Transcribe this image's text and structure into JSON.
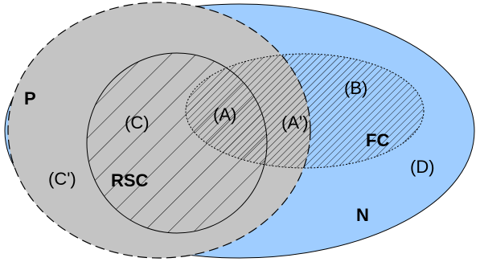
{
  "diagram": {
    "sets": {
      "n": {
        "label": "N",
        "color": "#9fcdff"
      },
      "p": {
        "label": "P",
        "color": "#c4c4c4"
      },
      "rsc": {
        "label": "RSC"
      },
      "fc": {
        "label": "FC"
      }
    },
    "regions": {
      "a": "(A)",
      "a_prime": "(A')",
      "b": "(B)",
      "c": "(C)",
      "c_prime": "(C')",
      "d": "(D)"
    }
  }
}
